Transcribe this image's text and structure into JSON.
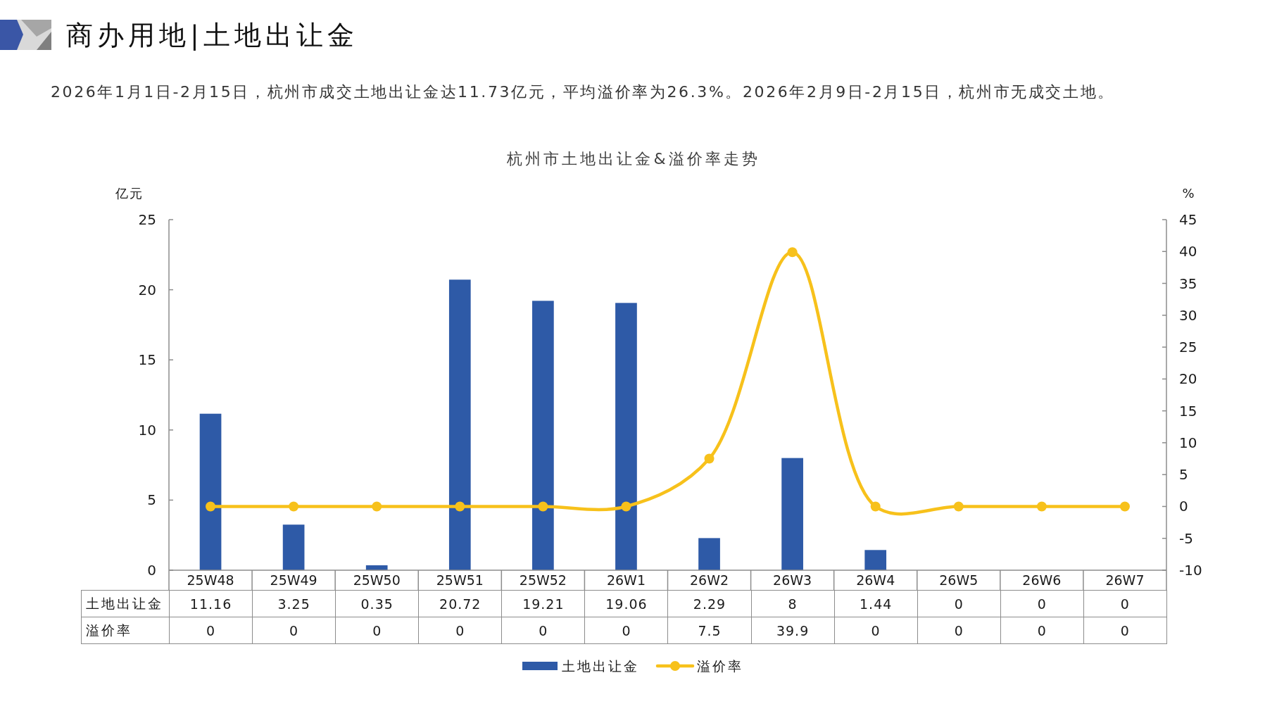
{
  "chart_data": {
    "type": "bar",
    "title": "杭州市土地出让金&溢价率走势",
    "ylabel": "亿元",
    "y2label": "%",
    "annotations": [
      "商办用地|土地出让金",
      "2026年1月1日-2月15日，杭州市成交土地出让金达11.73亿元，平均溢价率为26.3%。2026年2月9日-2月15日，杭州市无成交土地。"
    ],
    "categories": [
      "25W48",
      "25W49",
      "25W50",
      "25W51",
      "25W52",
      "26W1",
      "26W2",
      "26W3",
      "26W4",
      "26W5",
      "26W6",
      "26W7"
    ],
    "series": [
      {
        "name": "土地出让金",
        "color": "#2e5aa7",
        "values": [
          11.16,
          3.25,
          0.35,
          20.72,
          19.21,
          19.06,
          2.29,
          8,
          1.44,
          0,
          0,
          0
        ]
      },
      {
        "name": "溢价率",
        "type": "line",
        "axis": "y2",
        "color": "#f7c11b",
        "values": [
          0,
          0,
          0,
          0,
          0,
          0,
          7.5,
          39.9,
          0,
          0,
          0,
          0
        ]
      }
    ],
    "ylim": [
      0,
      25
    ],
    "yticks": [
      0,
      5,
      10,
      15,
      20,
      25
    ],
    "y2lim": [
      -10,
      45
    ],
    "y2ticks": [
      -10,
      -5,
      0,
      5,
      10,
      15,
      20,
      25,
      30,
      35,
      40,
      45
    ],
    "marker": "circle",
    "data_labels": true,
    "legend": "bottom"
  }
}
